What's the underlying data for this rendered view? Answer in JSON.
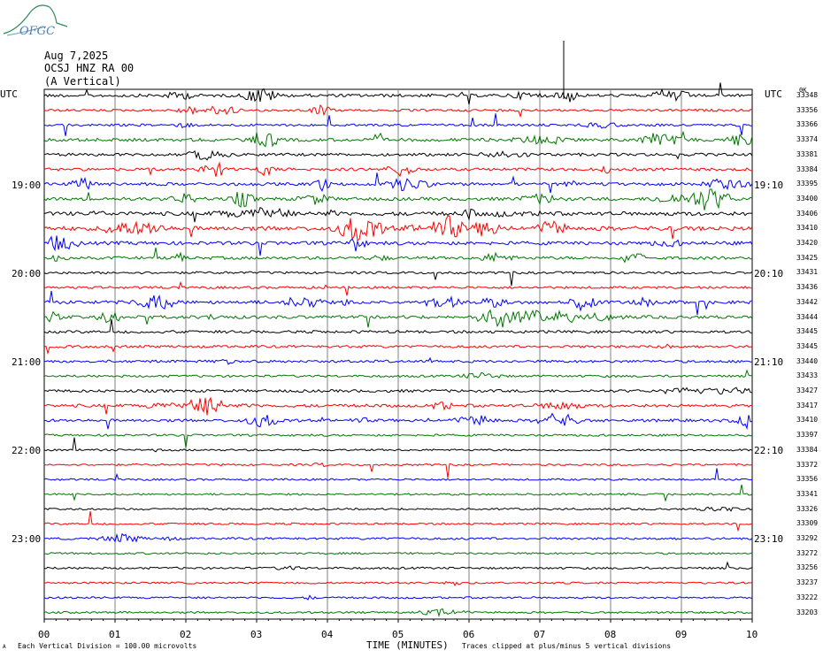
{
  "logo": {
    "text": "OFGC"
  },
  "header": {
    "date": "Aug 7,2025",
    "station": "OCSJ HNZ RA 00",
    "component": "(A Vertical)"
  },
  "left_axis": {
    "label": "UTC",
    "hour_labels": [
      "19:00",
      "20:00",
      "21:00",
      "22:00",
      "23:00"
    ]
  },
  "right_axis": {
    "label": "UTC",
    "hour_labels": [
      "19:10",
      "20:10",
      "21:10",
      "22:10",
      "23:10"
    ],
    "first_row_label": "0K"
  },
  "footer": {
    "scale_note": "Each Vertical Division =  100.00 microvolts",
    "x_axis_title": "TIME (MINUTES)",
    "clip_note": "Traces clipped at plus/minus 5 vertical divisions",
    "corner_mark": "A"
  },
  "colors": {
    "trace_cycle": [
      "#000000",
      "#ff0000",
      "#0000ff",
      "#007700"
    ],
    "grid": "#808080"
  },
  "chart_data": {
    "type": "line",
    "title": "OCSJ HNZ RA 00",
    "xlabel": "TIME (MINUTES)",
    "x_ticks": [
      "00",
      "01",
      "02",
      "03",
      "04",
      "05",
      "06",
      "07",
      "08",
      "09",
      "10"
    ],
    "xlim": [
      0,
      10
    ],
    "trace_count": 36,
    "rows_per_hour": 6,
    "right_values": [
      "33348",
      "33356",
      "33366",
      "33374",
      "33381",
      "33384",
      "33395",
      "33400",
      "33406",
      "33410",
      "33420",
      "33425",
      "33431",
      "33436",
      "33442",
      "33444",
      "33445",
      "33445",
      "33440",
      "33433",
      "33427",
      "33417",
      "33410",
      "33397",
      "33384",
      "33372",
      "33356",
      "33341",
      "33326",
      "33309",
      "33292",
      "33272",
      "33256",
      "33237",
      "33222",
      "33203"
    ],
    "activity": [
      1.0,
      0.6,
      0.6,
      1.1,
      0.9,
      0.9,
      1.0,
      1.1,
      1.5,
      1.8,
      1.3,
      0.9,
      0.6,
      0.6,
      1.2,
      1.1,
      0.8,
      0.7,
      0.7,
      0.5,
      0.8,
      1.0,
      0.9,
      0.4,
      0.3,
      0.3,
      0.3,
      0.3,
      0.3,
      0.3,
      0.5,
      0.3,
      0.4,
      0.3,
      0.3,
      0.3
    ]
  }
}
